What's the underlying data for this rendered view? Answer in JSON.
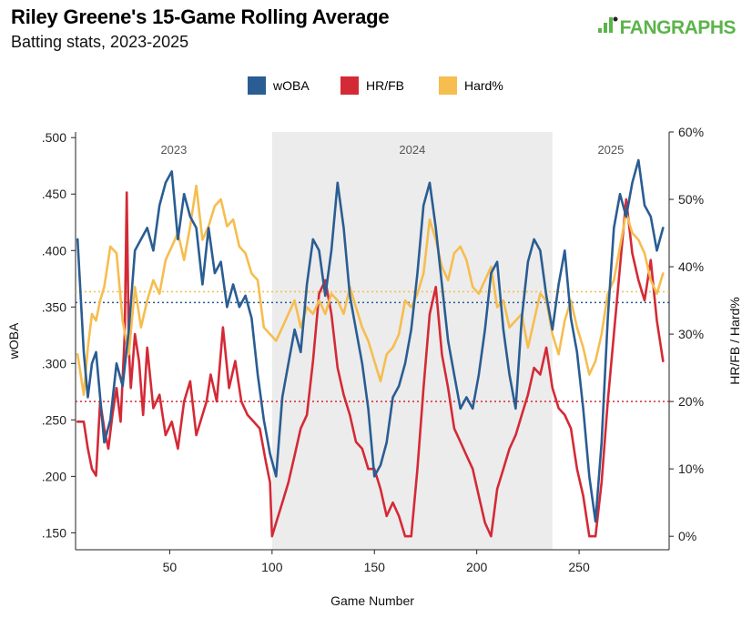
{
  "header": {
    "title": "Riley Greene's 15-Game Rolling Average",
    "subtitle": "Batting stats, 2023-2025",
    "logo": "FANGRAPHS"
  },
  "chart_data": {
    "type": "line",
    "title": "Riley Greene's 15-Game Rolling Average",
    "subtitle": "Batting stats, 2023-2025",
    "xlabel": "Game Number",
    "ylabel_left": "wOBA",
    "ylabel_right": "HR/FB / Hard%",
    "xlim": [
      4,
      294
    ],
    "ylim_left": [
      0.135,
      0.505
    ],
    "ylim_right": [
      -0.02,
      0.6
    ],
    "x_ticks": [
      50,
      100,
      150,
      200,
      250
    ],
    "y_left_ticks": [
      ".150",
      ".200",
      ".250",
      ".300",
      ".350",
      ".400",
      ".450",
      ".500"
    ],
    "y_left_tick_values": [
      0.15,
      0.2,
      0.25,
      0.3,
      0.35,
      0.4,
      0.45,
      0.5
    ],
    "y_right_ticks": [
      "0%",
      "10%",
      "20%",
      "30%",
      "40%",
      "50%",
      "60%"
    ],
    "y_right_tick_values": [
      0,
      0.1,
      0.2,
      0.3,
      0.4,
      0.5,
      0.6
    ],
    "grid": false,
    "legend_position": "top-center",
    "seasons": [
      {
        "label": "2023",
        "x_start": 4,
        "x_end": 100,
        "shaded": false
      },
      {
        "label": "2024",
        "x_start": 100,
        "x_end": 237,
        "shaded": true
      },
      {
        "label": "2025",
        "x_start": 237,
        "x_end": 294,
        "shaded": false
      }
    ],
    "colors": {
      "woba": "#2a5d92",
      "hrfb": "#d42a36",
      "hard": "#f6bd4f",
      "shade": "#ececec"
    },
    "averages": {
      "woba": 0.354,
      "hrfb": 0.2,
      "hard": 0.363
    },
    "series": [
      {
        "name": "wOBA",
        "axis": "left",
        "color": "#2a5d92",
        "x": [
          5,
          8,
          10,
          12,
          14,
          16,
          18,
          21,
          24,
          27,
          30,
          33,
          36,
          39,
          42,
          45,
          48,
          51,
          54,
          57,
          60,
          63,
          66,
          69,
          72,
          75,
          78,
          81,
          84,
          87,
          90,
          93,
          96,
          99,
          102,
          105,
          108,
          111,
          114,
          117,
          120,
          123,
          126,
          129,
          132,
          135,
          138,
          141,
          144,
          147,
          150,
          153,
          156,
          159,
          162,
          165,
          168,
          171,
          174,
          177,
          180,
          183,
          186,
          189,
          192,
          195,
          198,
          201,
          204,
          207,
          210,
          213,
          216,
          219,
          222,
          225,
          228,
          231,
          234,
          237,
          240,
          243,
          246,
          249,
          252,
          255,
          258,
          261,
          264,
          267,
          270,
          273,
          276,
          279,
          282,
          285,
          288,
          291
        ],
        "values": [
          0.41,
          0.31,
          0.27,
          0.3,
          0.31,
          0.27,
          0.23,
          0.25,
          0.3,
          0.28,
          0.33,
          0.4,
          0.41,
          0.42,
          0.4,
          0.44,
          0.46,
          0.47,
          0.41,
          0.45,
          0.43,
          0.42,
          0.37,
          0.42,
          0.38,
          0.39,
          0.35,
          0.37,
          0.35,
          0.36,
          0.34,
          0.29,
          0.25,
          0.22,
          0.2,
          0.27,
          0.3,
          0.33,
          0.31,
          0.37,
          0.41,
          0.4,
          0.36,
          0.4,
          0.46,
          0.42,
          0.36,
          0.33,
          0.3,
          0.26,
          0.2,
          0.21,
          0.23,
          0.27,
          0.28,
          0.3,
          0.33,
          0.38,
          0.44,
          0.46,
          0.42,
          0.37,
          0.32,
          0.29,
          0.26,
          0.27,
          0.26,
          0.29,
          0.33,
          0.38,
          0.39,
          0.33,
          0.29,
          0.26,
          0.34,
          0.39,
          0.41,
          0.4,
          0.36,
          0.33,
          0.37,
          0.4,
          0.34,
          0.31,
          0.26,
          0.2,
          0.16,
          0.23,
          0.34,
          0.42,
          0.45,
          0.43,
          0.46,
          0.48,
          0.44,
          0.43,
          0.4,
          0.42
        ]
      },
      {
        "name": "HR/FB",
        "axis": "right",
        "color": "#d42a36",
        "x": [
          5,
          8,
          10,
          12,
          14,
          16,
          18,
          20,
          22,
          24,
          26,
          28,
          29,
          30,
          31,
          33,
          35,
          37,
          39,
          42,
          45,
          48,
          51,
          54,
          57,
          60,
          63,
          66,
          68,
          70,
          73,
          76,
          79,
          82,
          85,
          88,
          91,
          94,
          97,
          99,
          100,
          102,
          105,
          108,
          111,
          114,
          117,
          120,
          123,
          126,
          129,
          132,
          135,
          138,
          141,
          144,
          147,
          150,
          153,
          156,
          159,
          162,
          165,
          168,
          171,
          174,
          177,
          180,
          183,
          186,
          189,
          192,
          195,
          198,
          201,
          204,
          207,
          210,
          213,
          216,
          219,
          222,
          225,
          228,
          231,
          234,
          237,
          240,
          243,
          246,
          249,
          252,
          255,
          258,
          261,
          264,
          267,
          270,
          273,
          276,
          279,
          282,
          285,
          288,
          291
        ],
        "values": [
          0.17,
          0.17,
          0.13,
          0.1,
          0.09,
          0.2,
          0.16,
          0.13,
          0.18,
          0.22,
          0.17,
          0.3,
          0.51,
          0.28,
          0.22,
          0.3,
          0.26,
          0.18,
          0.28,
          0.19,
          0.21,
          0.15,
          0.17,
          0.13,
          0.2,
          0.23,
          0.15,
          0.18,
          0.2,
          0.24,
          0.2,
          0.31,
          0.22,
          0.26,
          0.2,
          0.18,
          0.17,
          0.16,
          0.11,
          0.08,
          0.0,
          0.02,
          0.05,
          0.08,
          0.12,
          0.16,
          0.18,
          0.26,
          0.36,
          0.38,
          0.33,
          0.25,
          0.21,
          0.18,
          0.14,
          0.13,
          0.1,
          0.1,
          0.07,
          0.03,
          0.05,
          0.03,
          0.0,
          0.0,
          0.1,
          0.22,
          0.33,
          0.37,
          0.27,
          0.22,
          0.16,
          0.14,
          0.12,
          0.1,
          0.06,
          0.02,
          0.0,
          0.07,
          0.1,
          0.13,
          0.15,
          0.18,
          0.21,
          0.25,
          0.24,
          0.28,
          0.22,
          0.19,
          0.18,
          0.16,
          0.1,
          0.06,
          0.0,
          0.0,
          0.08,
          0.2,
          0.3,
          0.4,
          0.5,
          0.42,
          0.38,
          0.35,
          0.41,
          0.32,
          0.26
        ]
      },
      {
        "name": "Hard%",
        "axis": "right",
        "color": "#f6bd4f",
        "x": [
          5,
          8,
          10,
          12,
          14,
          16,
          18,
          21,
          24,
          27,
          30,
          33,
          36,
          39,
          42,
          45,
          48,
          51,
          54,
          57,
          60,
          63,
          66,
          69,
          72,
          75,
          78,
          81,
          84,
          87,
          90,
          93,
          96,
          99,
          102,
          105,
          108,
          111,
          114,
          117,
          120,
          123,
          126,
          129,
          132,
          135,
          138,
          141,
          144,
          147,
          150,
          153,
          156,
          159,
          162,
          165,
          168,
          171,
          174,
          177,
          180,
          183,
          186,
          189,
          192,
          195,
          198,
          201,
          204,
          207,
          210,
          213,
          216,
          219,
          222,
          225,
          228,
          231,
          234,
          237,
          240,
          243,
          246,
          249,
          252,
          255,
          258,
          261,
          264,
          267,
          270,
          273,
          276,
          279,
          282,
          285,
          288,
          291
        ],
        "values": [
          0.27,
          0.21,
          0.28,
          0.33,
          0.32,
          0.35,
          0.37,
          0.43,
          0.42,
          0.32,
          0.27,
          0.37,
          0.31,
          0.35,
          0.38,
          0.36,
          0.41,
          0.43,
          0.45,
          0.41,
          0.46,
          0.52,
          0.44,
          0.46,
          0.49,
          0.5,
          0.46,
          0.47,
          0.43,
          0.42,
          0.39,
          0.38,
          0.31,
          0.3,
          0.29,
          0.31,
          0.33,
          0.35,
          0.31,
          0.34,
          0.33,
          0.35,
          0.33,
          0.36,
          0.35,
          0.33,
          0.37,
          0.34,
          0.31,
          0.29,
          0.26,
          0.23,
          0.27,
          0.28,
          0.3,
          0.35,
          0.34,
          0.36,
          0.39,
          0.47,
          0.44,
          0.4,
          0.38,
          0.42,
          0.43,
          0.41,
          0.37,
          0.36,
          0.38,
          0.4,
          0.34,
          0.35,
          0.31,
          0.32,
          0.33,
          0.28,
          0.32,
          0.36,
          0.35,
          0.3,
          0.27,
          0.32,
          0.35,
          0.31,
          0.28,
          0.24,
          0.26,
          0.3,
          0.36,
          0.38,
          0.43,
          0.48,
          0.45,
          0.44,
          0.42,
          0.38,
          0.36,
          0.39
        ]
      }
    ]
  }
}
